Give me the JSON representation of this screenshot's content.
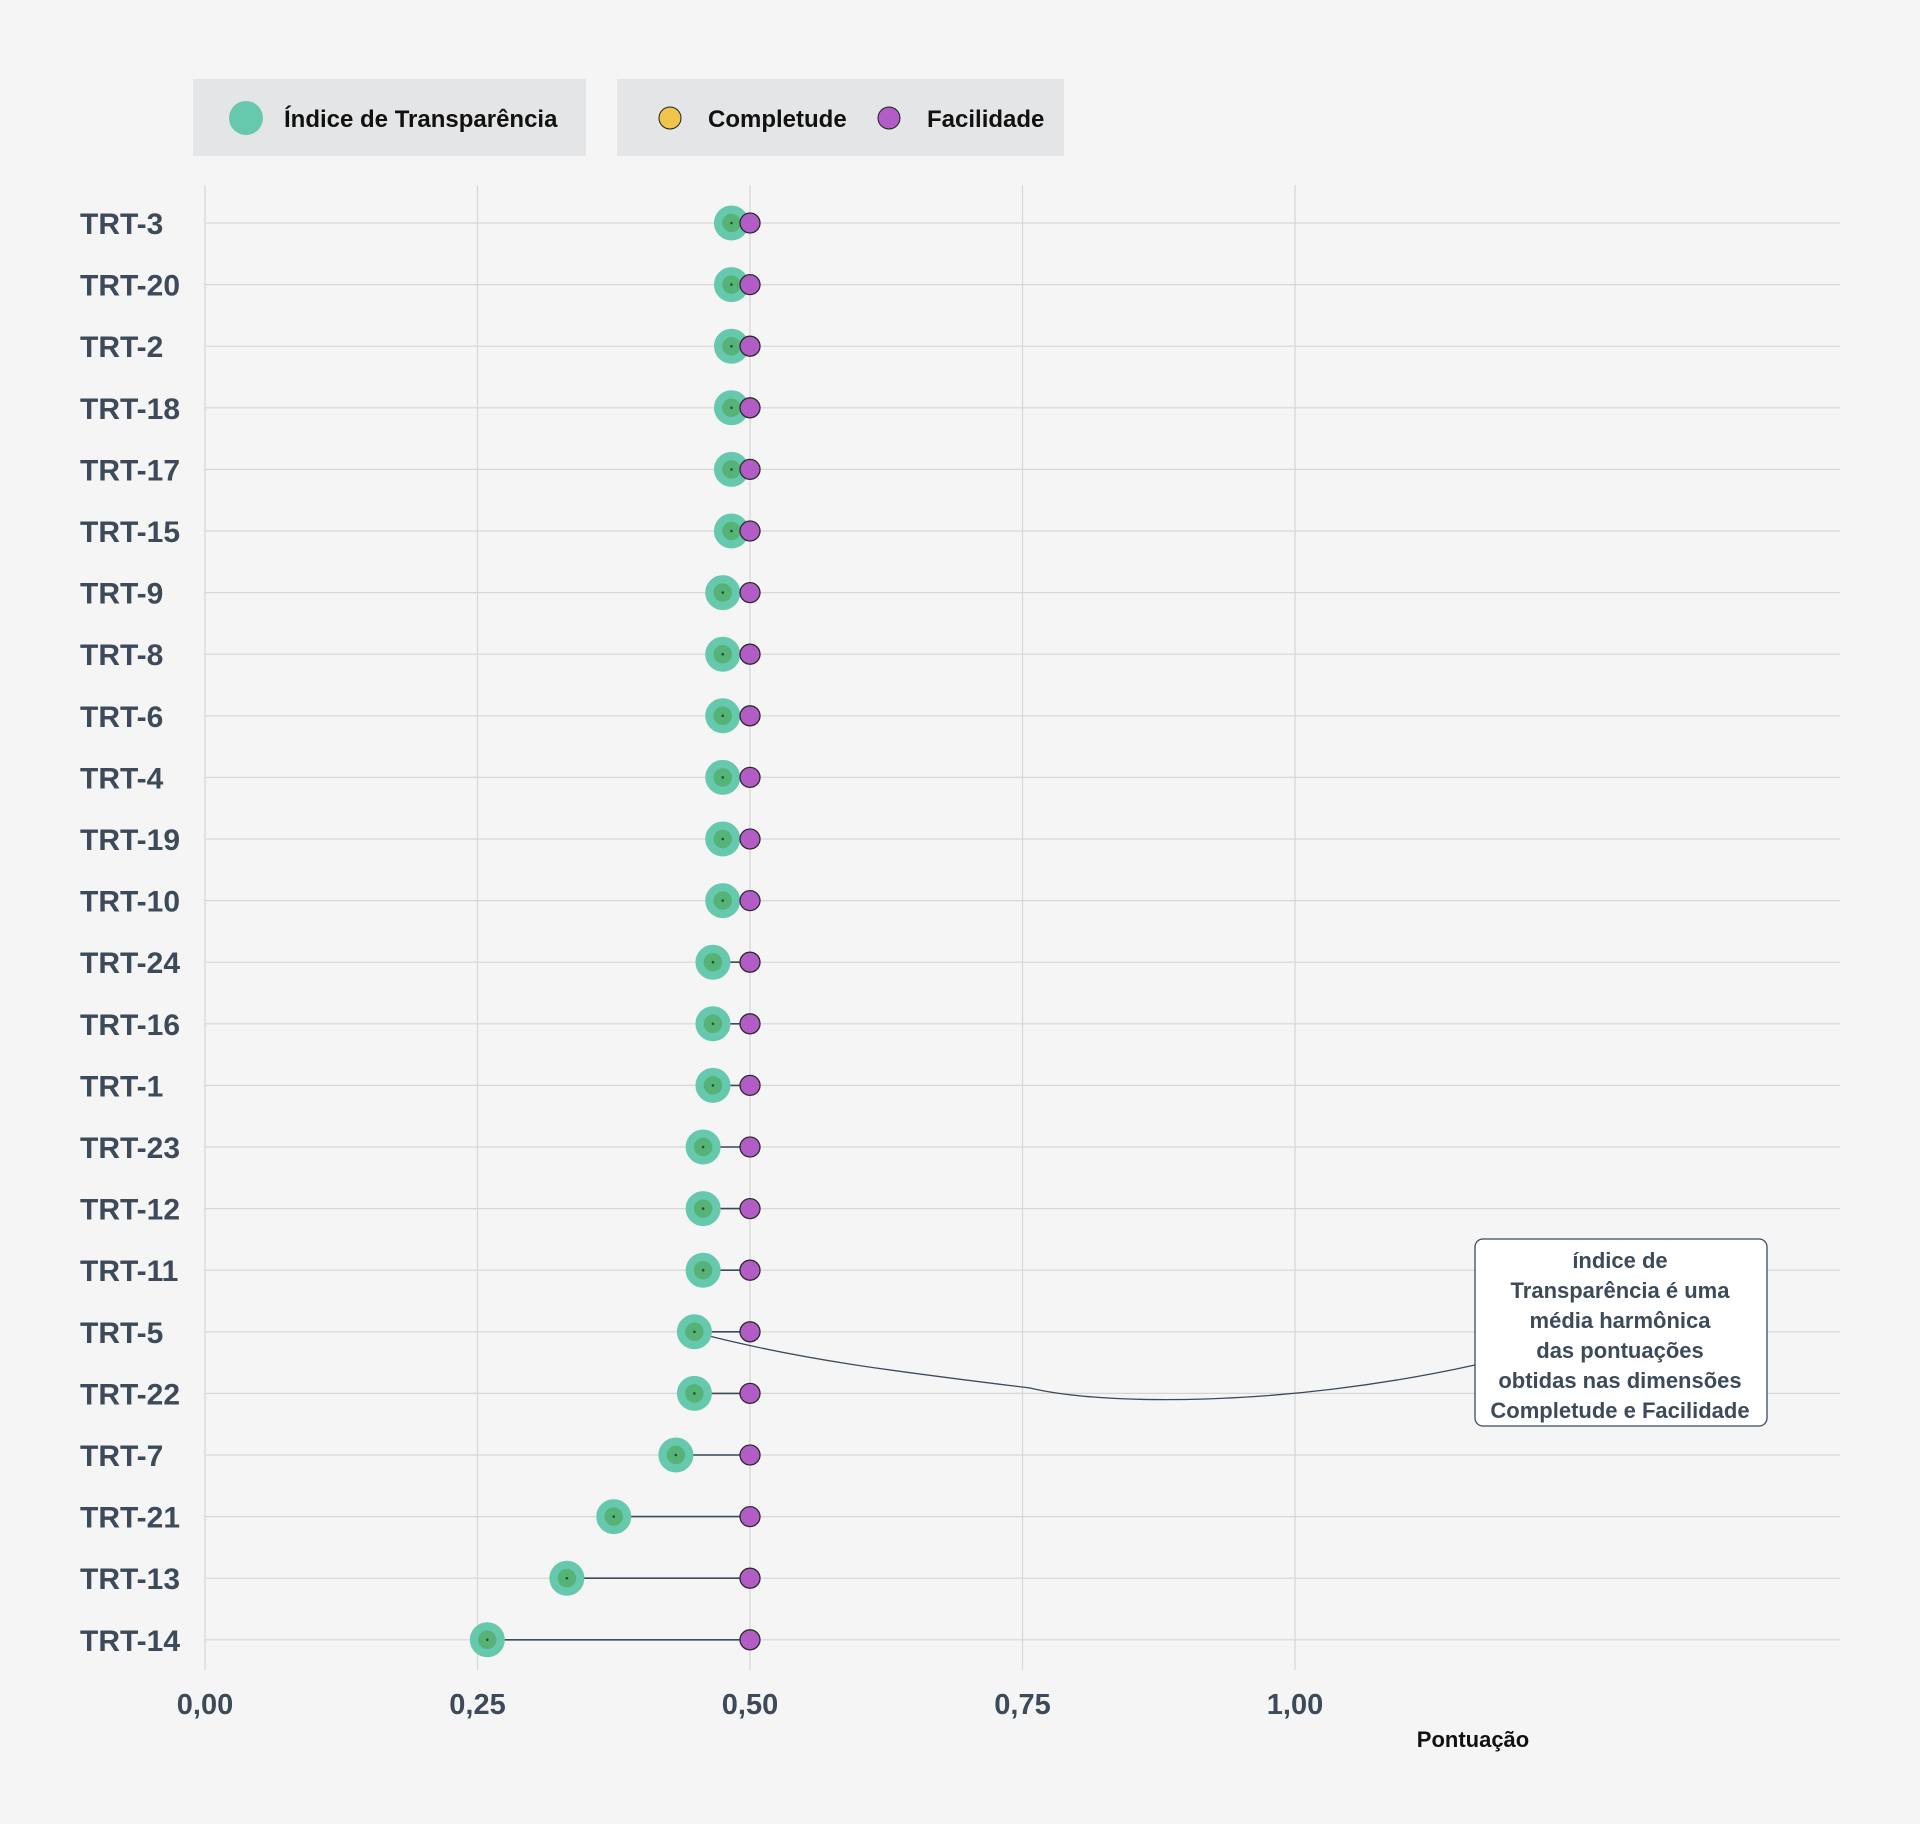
{
  "legend": {
    "index_label": "Índice de Transparência",
    "completude_label": "Completude",
    "facilidade_label": "Facilidade"
  },
  "colors": {
    "index": "#66c9ad",
    "completude": "#f0c34b",
    "facilidade": "#b25cc6",
    "segment": "#3c4a5a",
    "text": "#3c4a5a"
  },
  "chart_data": {
    "type": "dumbbell",
    "xlabel": "Pontuação",
    "xlim": [
      0,
      1.5
    ],
    "xticks": [
      {
        "value": 0,
        "label": "0,00"
      },
      {
        "value": 0.25,
        "label": "0,25"
      },
      {
        "value": 0.5,
        "label": "0,50"
      },
      {
        "value": 0.75,
        "label": "0,75"
      },
      {
        "value": 1.0,
        "label": "1,00"
      }
    ],
    "categories": [
      "TRT-3",
      "TRT-20",
      "TRT-2",
      "TRT-18",
      "TRT-17",
      "TRT-15",
      "TRT-9",
      "TRT-8",
      "TRT-6",
      "TRT-4",
      "TRT-19",
      "TRT-10",
      "TRT-24",
      "TRT-16",
      "TRT-1",
      "TRT-23",
      "TRT-12",
      "TRT-11",
      "TRT-5",
      "TRT-22",
      "TRT-7",
      "TRT-21",
      "TRT-13",
      "TRT-14"
    ],
    "series": [
      {
        "name": "Índice de Transparência",
        "values": [
          0.483,
          0.483,
          0.483,
          0.483,
          0.483,
          0.483,
          0.475,
          0.475,
          0.475,
          0.475,
          0.475,
          0.475,
          0.466,
          0.466,
          0.466,
          0.457,
          0.457,
          0.457,
          0.449,
          0.449,
          0.432,
          0.375,
          0.332,
          0.259
        ]
      },
      {
        "name": "Completude",
        "values": [
          0.483,
          0.483,
          0.483,
          0.483,
          0.483,
          0.483,
          0.475,
          0.475,
          0.475,
          0.475,
          0.475,
          0.475,
          0.466,
          0.466,
          0.466,
          0.457,
          0.457,
          0.457,
          0.449,
          0.449,
          0.432,
          0.375,
          0.332,
          0.259
        ]
      },
      {
        "name": "Facilidade",
        "values": [
          0.5,
          0.5,
          0.5,
          0.5,
          0.5,
          0.5,
          0.5,
          0.5,
          0.5,
          0.5,
          0.5,
          0.5,
          0.5,
          0.5,
          0.5,
          0.5,
          0.5,
          0.5,
          0.5,
          0.5,
          0.5,
          0.5,
          0.5,
          0.5
        ]
      }
    ],
    "annotation": {
      "target": "TRT-5",
      "lines": [
        "índice de",
        "Transparência é uma",
        "média harmônica",
        "das pontuações",
        "obtidas nas dimensões",
        "Completude e Facilidade"
      ]
    },
    "grid": true,
    "legend_position": "top-left"
  }
}
